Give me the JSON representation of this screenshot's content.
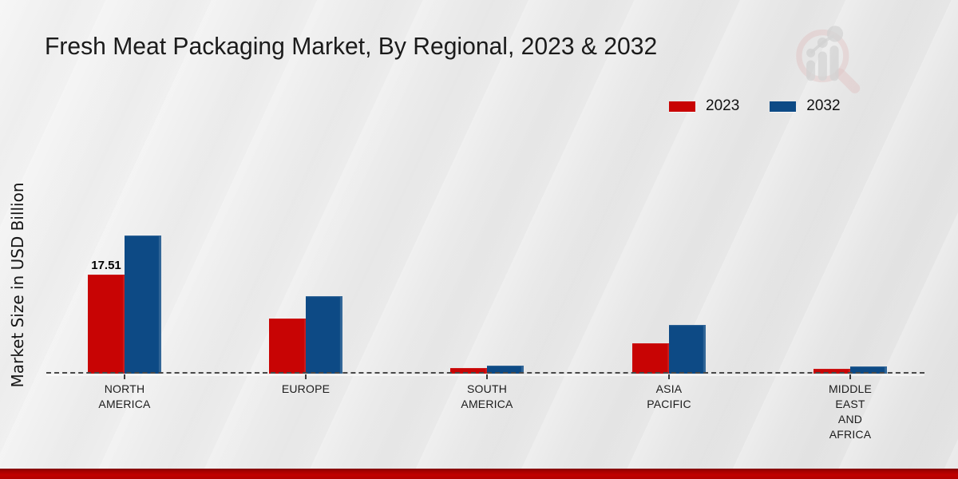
{
  "title": "Fresh Meat Packaging Market, By Regional, 2023 & 2032",
  "y_axis_label": "Market Size in USD Billion",
  "legend": {
    "position": "top-right",
    "items": [
      {
        "label": "2023",
        "color": "#c80404"
      },
      {
        "label": "2032",
        "color": "#0d4a85"
      }
    ]
  },
  "watermark": {
    "name": "magnifier-bar-chart-logo"
  },
  "footer": {
    "band_color": "#b20000"
  },
  "chart_data": {
    "type": "bar",
    "title": "Fresh Meat Packaging Market, By Regional, 2023 & 2032",
    "xlabel": "",
    "ylabel": "Market Size in USD Billion",
    "ylim": [
      0,
      26
    ],
    "grid": false,
    "baseline_style": "dashed",
    "legend_position": "top-right",
    "categories": [
      "NORTH AMERICA",
      "EUROPE",
      "SOUTH AMERICA",
      "ASIA PACIFIC",
      "MIDDLE EAST AND AFRICA"
    ],
    "category_label_lines": [
      [
        "NORTH",
        "AMERICA"
      ],
      [
        "EUROPE"
      ],
      [
        "SOUTH",
        "AMERICA"
      ],
      [
        "ASIA",
        "PACIFIC"
      ],
      [
        "MIDDLE",
        "EAST",
        "AND",
        "AFRICA"
      ]
    ],
    "series": [
      {
        "name": "2023",
        "color": "#c80404",
        "values": [
          17.51,
          9.8,
          1.05,
          5.3,
          0.9
        ]
      },
      {
        "name": "2032",
        "color": "#0d4a85",
        "values": [
          24.4,
          13.7,
          1.4,
          8.6,
          1.3
        ]
      }
    ],
    "data_labels": [
      {
        "series": "2023",
        "category_index": 0,
        "text": "17.51"
      }
    ]
  }
}
